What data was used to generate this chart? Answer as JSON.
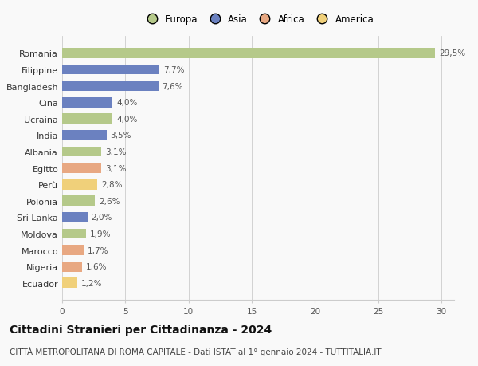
{
  "categories": [
    "Romania",
    "Filippine",
    "Bangladesh",
    "Cina",
    "Ucraina",
    "India",
    "Albania",
    "Egitto",
    "Perù",
    "Polonia",
    "Sri Lanka",
    "Moldova",
    "Marocco",
    "Nigeria",
    "Ecuador"
  ],
  "values": [
    29.5,
    7.7,
    7.6,
    4.0,
    4.0,
    3.5,
    3.1,
    3.1,
    2.8,
    2.6,
    2.0,
    1.9,
    1.7,
    1.6,
    1.2
  ],
  "labels": [
    "29,5%",
    "7,7%",
    "7,6%",
    "4,0%",
    "4,0%",
    "3,5%",
    "3,1%",
    "3,1%",
    "2,8%",
    "2,6%",
    "2,0%",
    "1,9%",
    "1,7%",
    "1,6%",
    "1,2%"
  ],
  "colors": [
    "#b5c98a",
    "#6b81c0",
    "#6b81c0",
    "#6b81c0",
    "#b5c98a",
    "#6b81c0",
    "#b5c98a",
    "#e8a882",
    "#f0d07a",
    "#b5c98a",
    "#6b81c0",
    "#b5c98a",
    "#e8a882",
    "#e8a882",
    "#f0d07a"
  ],
  "continent_colors": {
    "Europa": "#b5c98a",
    "Asia": "#6b81c0",
    "Africa": "#e8a882",
    "America": "#f0d07a"
  },
  "title": "Cittadini Stranieri per Cittadinanza - 2024",
  "subtitle": "CITTÀ METROPOLITANA DI ROMA CAPITALE - Dati ISTAT al 1° gennaio 2024 - TUTTITALIA.IT",
  "xlim": [
    0,
    31
  ],
  "xticks": [
    0,
    5,
    10,
    15,
    20,
    25,
    30
  ],
  "background_color": "#f9f9f9",
  "grid_color": "#cccccc",
  "title_fontsize": 10,
  "subtitle_fontsize": 7.5,
  "label_fontsize": 7.5,
  "ytick_fontsize": 8
}
